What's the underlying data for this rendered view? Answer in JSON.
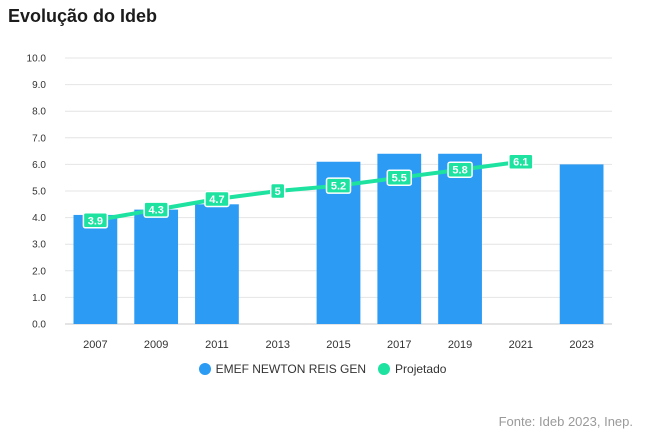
{
  "title": "Evolução do Ideb",
  "source": "Fonte: Ideb 2023, Inep.",
  "colors": {
    "bar": "#2b9bf4",
    "line": "#1ee3a0",
    "grid": "#e4e4e4"
  },
  "chart_data": {
    "type": "bar",
    "categories": [
      "2007",
      "2009",
      "2011",
      "2013",
      "2015",
      "2017",
      "2019",
      "2021",
      "2023"
    ],
    "ylim": [
      0,
      10
    ],
    "yticks": [
      "0.0",
      "1.0",
      "2.0",
      "3.0",
      "4.0",
      "5.0",
      "6.0",
      "7.0",
      "8.0",
      "9.0",
      "10.0"
    ],
    "series": [
      {
        "name": "EMEF NEWTON REIS GEN",
        "type": "bar",
        "values": [
          4.1,
          4.3,
          4.5,
          null,
          6.1,
          6.4,
          6.4,
          null,
          6.0
        ]
      },
      {
        "name": "Projetado",
        "type": "line",
        "values": [
          3.9,
          4.3,
          4.7,
          5,
          5.2,
          5.5,
          5.8,
          6.1,
          null
        ],
        "labels": [
          "3.9",
          "4.3",
          "4.7",
          "5",
          "5.2",
          "5.5",
          "5.8",
          "6.1",
          ""
        ]
      }
    ],
    "legend": "bottom-center",
    "grid": true
  }
}
